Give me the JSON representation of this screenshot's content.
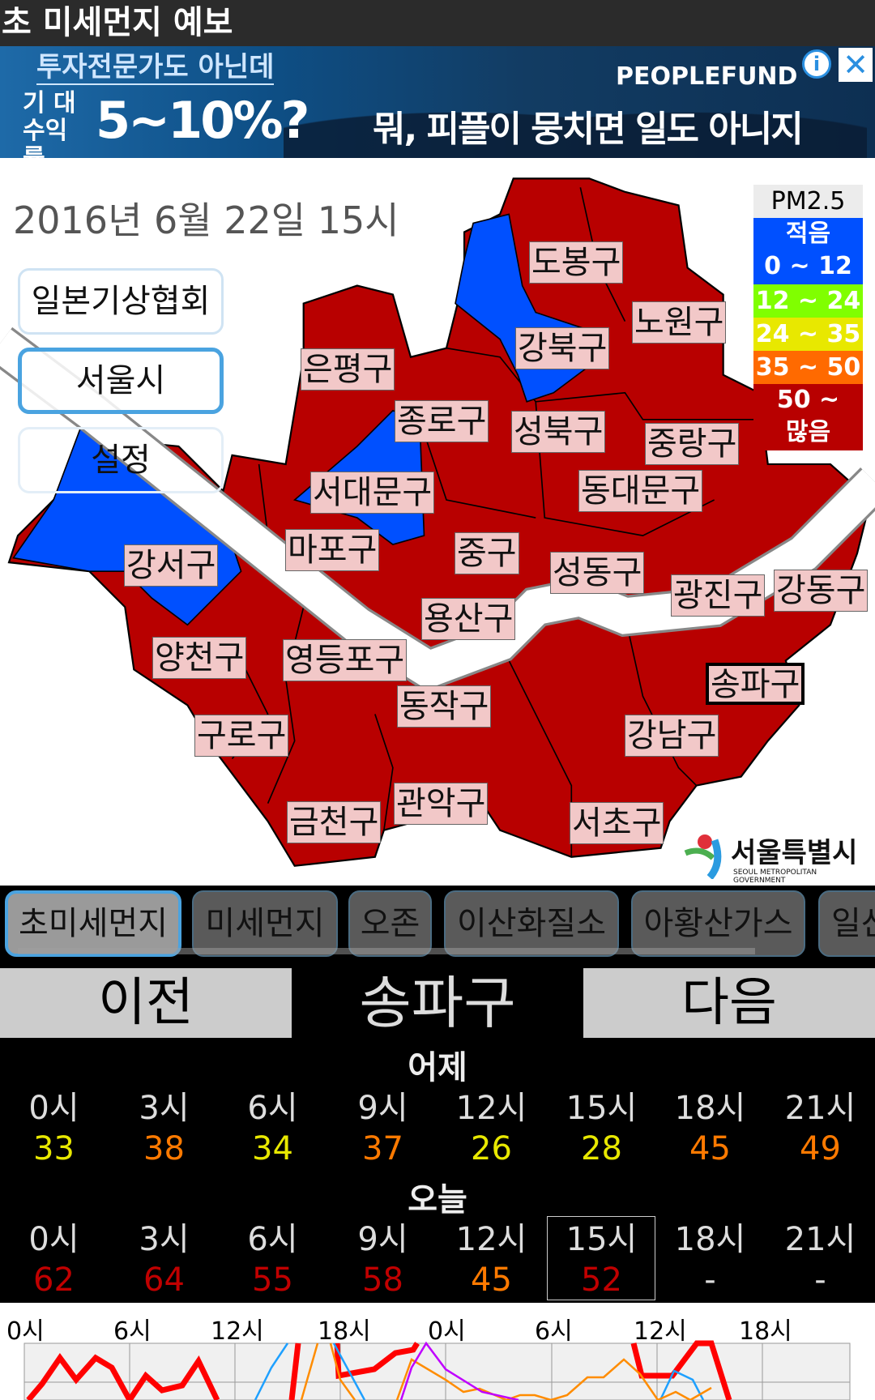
{
  "title": "초 미세먼지 예보",
  "ad": {
    "line1": "투자전문가도 아닌데",
    "line2": "기 대 수익률",
    "line3": "5~10%?",
    "brand": "PEOPLEFUND",
    "slogan": "뭐, 피플이 뭉치면 일도 아니지",
    "info_icon": "i",
    "close_icon": "✕"
  },
  "map": {
    "date": "2016년 6월 22일 15시",
    "buttons": [
      "일본기상협회",
      "서울시",
      "설정"
    ],
    "selected_button": "서울시",
    "districts": [
      "도봉구",
      "노원구",
      "강북구",
      "은평구",
      "종로구",
      "성북구",
      "중랑구",
      "동대문구",
      "서대문구",
      "마포구",
      "중구",
      "성동구",
      "광진구",
      "강동구",
      "강서구",
      "용산구",
      "양천구",
      "영등포구",
      "송파구",
      "동작구",
      "구로구",
      "강남구",
      "관악구",
      "금천구",
      "서초구"
    ],
    "selected_district": "송파구",
    "legend": {
      "title": "PM2.5",
      "items": [
        {
          "label1": "적음",
          "label2": "0 ~ 12",
          "color": "#0050ff"
        },
        {
          "label1": "12 ~ 24",
          "color": "#80ff00"
        },
        {
          "label1": "24 ~ 35",
          "color": "#e8e800"
        },
        {
          "label1": "35 ~ 50",
          "color": "#ff6a00"
        },
        {
          "label1": "50 ~",
          "label2": "많음",
          "color": "#b80000"
        }
      ]
    },
    "logo": {
      "name": "서울특별시",
      "sub": "SEOUL METROPOLITAN GOVERNMENT"
    }
  },
  "tabs": [
    "초미세먼지",
    "미세먼지",
    "오존",
    "이산화질소",
    "아황산가스",
    "일산화탄소"
  ],
  "active_tab": "초미세먼지",
  "nav": {
    "prev": "이전",
    "district": "송파구",
    "next": "다음"
  },
  "yesterday": {
    "label": "어제",
    "times": [
      "0시",
      "3시",
      "6시",
      "9시",
      "12시",
      "15시",
      "18시",
      "21시"
    ],
    "values": [
      "33",
      "38",
      "34",
      "37",
      "26",
      "28",
      "45",
      "49"
    ],
    "colors": [
      "#e8e800",
      "#ff7a00",
      "#e8e800",
      "#ff7a00",
      "#e8e800",
      "#e8e800",
      "#ff7a00",
      "#ff7a00"
    ]
  },
  "today": {
    "label": "오늘",
    "times": [
      "0시",
      "3시",
      "6시",
      "9시",
      "12시",
      "15시",
      "18시",
      "21시"
    ],
    "values": [
      "62",
      "64",
      "55",
      "58",
      "45",
      "52",
      "-",
      "-"
    ],
    "colors": [
      "#c00000",
      "#c00000",
      "#c00000",
      "#c00000",
      "#ff7a00",
      "#c00000",
      "#ddd",
      "#ddd"
    ],
    "selected": "15시"
  },
  "graph": {
    "x_labels": [
      "0시",
      "6시",
      "12시",
      "18시",
      "0시",
      "6시",
      "12시",
      "18시"
    ],
    "series_colors": [
      "#ff0000",
      "#1ea0ff",
      "#ff8c00",
      "#c000ff"
    ]
  }
}
